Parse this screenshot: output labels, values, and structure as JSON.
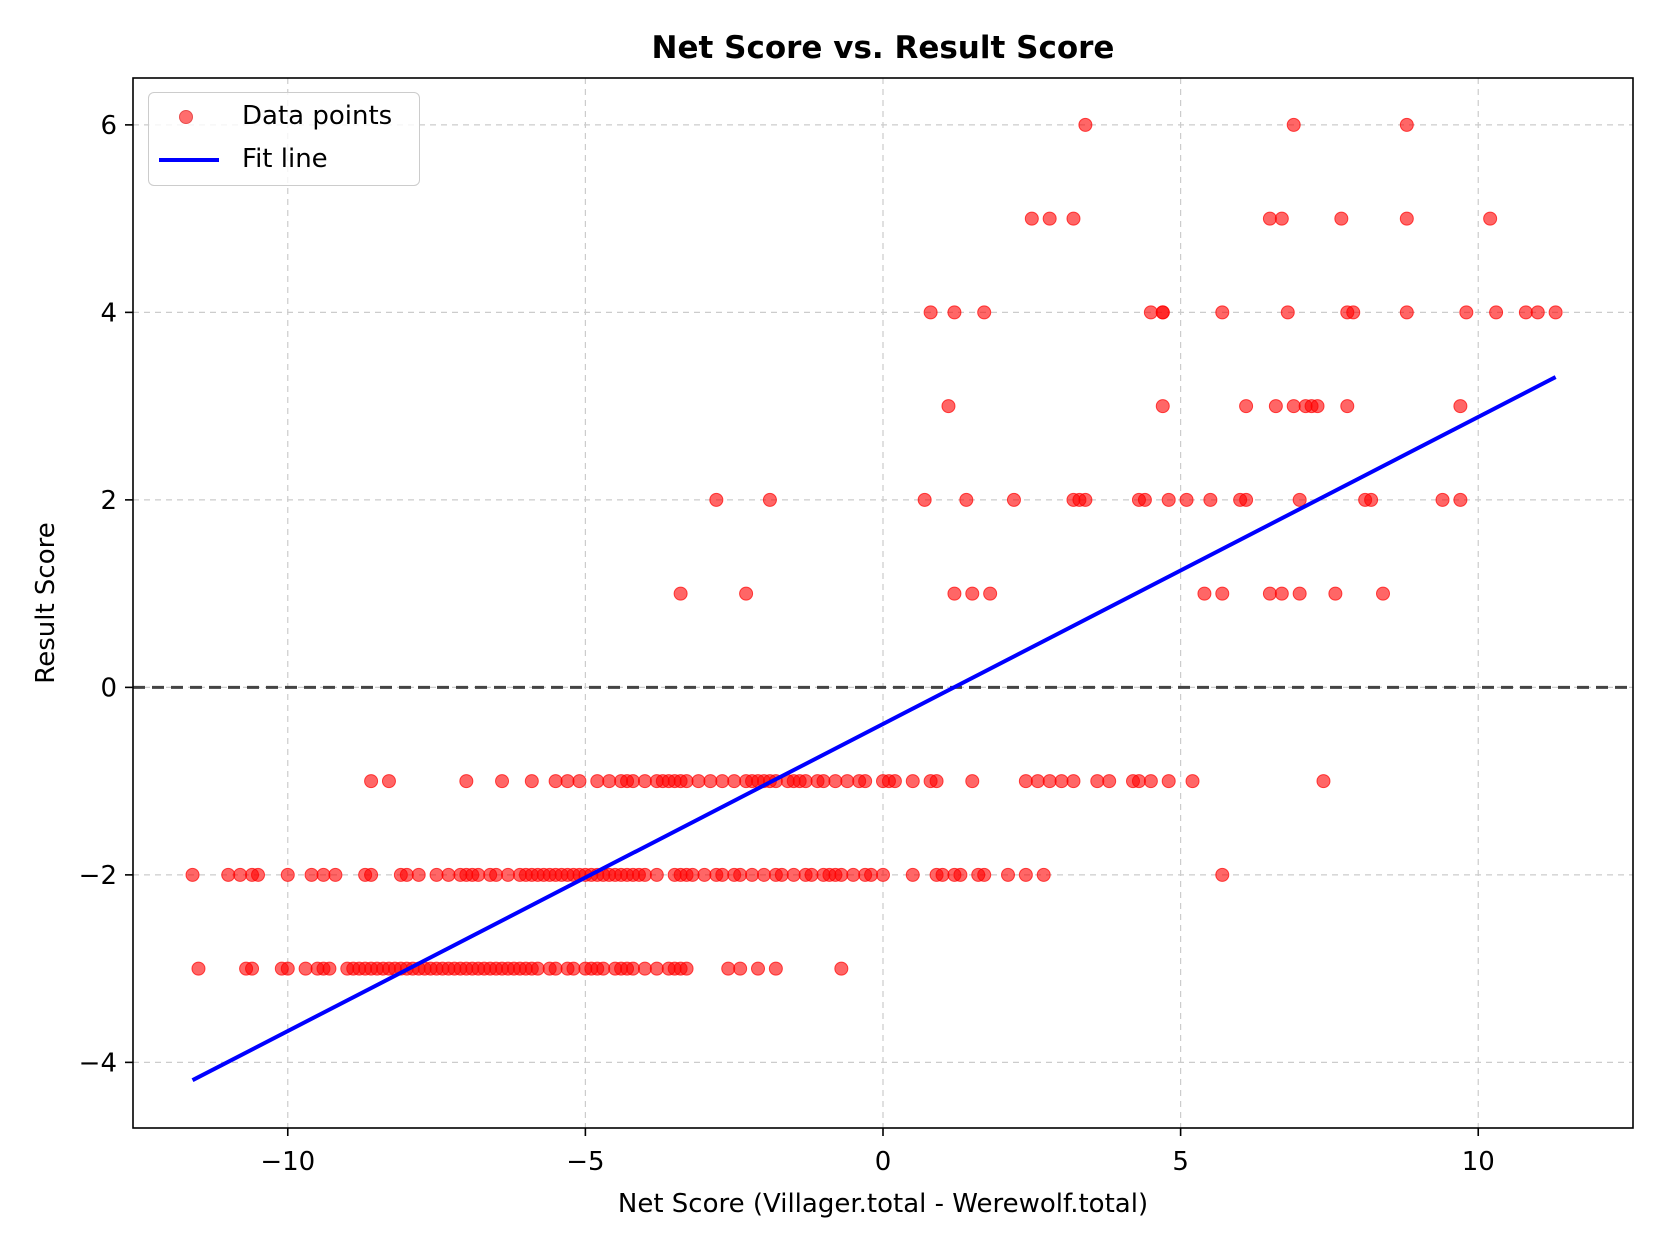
{
  "chart_data": {
    "type": "scatter",
    "title": "Net Score vs. Result Score",
    "xlabel": "Net Score (Villager.total - Werewolf.total)",
    "ylabel": "Result Score",
    "xlim": [
      -12.6,
      12.6
    ],
    "ylim": [
      -4.7,
      6.5
    ],
    "x_ticks": [
      -10,
      -5,
      0,
      5,
      10
    ],
    "x_tick_labels": [
      "−10",
      "−5",
      "0",
      "5",
      "10"
    ],
    "y_ticks": [
      -4,
      -2,
      0,
      2,
      4,
      6
    ],
    "y_tick_labels": [
      "−4",
      "−2",
      "0",
      "2",
      "4",
      "6"
    ],
    "grid": true,
    "legend_position": "top-left",
    "colors": {
      "points": "#ff0000",
      "fit_line": "#0000ff",
      "zero_line": "#444444",
      "grid": "#cccccc"
    },
    "reference_line": {
      "y": 0,
      "style": "dashed"
    },
    "series": [
      {
        "name": "Data points",
        "kind": "scatter",
        "points": [
          [
            3.4,
            6
          ],
          [
            6.9,
            6
          ],
          [
            8.8,
            6
          ],
          [
            2.5,
            5
          ],
          [
            2.8,
            5
          ],
          [
            3.2,
            5
          ],
          [
            6.5,
            5
          ],
          [
            6.7,
            5
          ],
          [
            7.7,
            5
          ],
          [
            8.8,
            5
          ],
          [
            10.2,
            5
          ],
          [
            0.8,
            4
          ],
          [
            1.2,
            4
          ],
          [
            1.7,
            4
          ],
          [
            4.5,
            4
          ],
          [
            4.7,
            4
          ],
          [
            4.7,
            4
          ],
          [
            5.7,
            4
          ],
          [
            6.8,
            4
          ],
          [
            7.8,
            4
          ],
          [
            7.9,
            4
          ],
          [
            8.8,
            4
          ],
          [
            9.8,
            4
          ],
          [
            10.3,
            4
          ],
          [
            10.8,
            4
          ],
          [
            11.0,
            4
          ],
          [
            11.3,
            4
          ],
          [
            1.1,
            3
          ],
          [
            4.7,
            3
          ],
          [
            6.1,
            3
          ],
          [
            6.6,
            3
          ],
          [
            6.9,
            3
          ],
          [
            7.1,
            3
          ],
          [
            7.2,
            3
          ],
          [
            7.3,
            3
          ],
          [
            7.8,
            3
          ],
          [
            9.7,
            3
          ],
          [
            -2.8,
            2
          ],
          [
            -1.9,
            2
          ],
          [
            0.7,
            2
          ],
          [
            1.4,
            2
          ],
          [
            2.2,
            2
          ],
          [
            3.2,
            2
          ],
          [
            3.3,
            2
          ],
          [
            3.4,
            2
          ],
          [
            4.3,
            2
          ],
          [
            4.4,
            2
          ],
          [
            4.8,
            2
          ],
          [
            5.1,
            2
          ],
          [
            5.5,
            2
          ],
          [
            6.0,
            2
          ],
          [
            6.1,
            2
          ],
          [
            7.0,
            2
          ],
          [
            8.1,
            2
          ],
          [
            8.2,
            2
          ],
          [
            9.4,
            2
          ],
          [
            9.7,
            2
          ],
          [
            -3.4,
            1
          ],
          [
            -2.3,
            1
          ],
          [
            1.2,
            1
          ],
          [
            1.5,
            1
          ],
          [
            1.8,
            1
          ],
          [
            5.4,
            1
          ],
          [
            5.7,
            1
          ],
          [
            6.5,
            1
          ],
          [
            6.7,
            1
          ],
          [
            7.0,
            1
          ],
          [
            7.6,
            1
          ],
          [
            8.4,
            1
          ],
          [
            -8.6,
            -1
          ],
          [
            -8.3,
            -1
          ],
          [
            -7.0,
            -1
          ],
          [
            -6.4,
            -1
          ],
          [
            -5.9,
            -1
          ],
          [
            -5.5,
            -1
          ],
          [
            -5.3,
            -1
          ],
          [
            -5.1,
            -1
          ],
          [
            -4.8,
            -1
          ],
          [
            -4.6,
            -1
          ],
          [
            -4.4,
            -1
          ],
          [
            -4.3,
            -1
          ],
          [
            -4.2,
            -1
          ],
          [
            -4.0,
            -1
          ],
          [
            -3.8,
            -1
          ],
          [
            -3.7,
            -1
          ],
          [
            -3.6,
            -1
          ],
          [
            -3.5,
            -1
          ],
          [
            -3.4,
            -1
          ],
          [
            -3.3,
            -1
          ],
          [
            -3.1,
            -1
          ],
          [
            -2.9,
            -1
          ],
          [
            -2.7,
            -1
          ],
          [
            -2.5,
            -1
          ],
          [
            -2.3,
            -1
          ],
          [
            -2.2,
            -1
          ],
          [
            -2.1,
            -1
          ],
          [
            -2.0,
            -1
          ],
          [
            -1.9,
            -1
          ],
          [
            -1.8,
            -1
          ],
          [
            -1.6,
            -1
          ],
          [
            -1.5,
            -1
          ],
          [
            -1.4,
            -1
          ],
          [
            -1.3,
            -1
          ],
          [
            -1.1,
            -1
          ],
          [
            -1.0,
            -1
          ],
          [
            -0.8,
            -1
          ],
          [
            -0.6,
            -1
          ],
          [
            -0.4,
            -1
          ],
          [
            -0.3,
            -1
          ],
          [
            0.0,
            -1
          ],
          [
            0.1,
            -1
          ],
          [
            0.2,
            -1
          ],
          [
            0.5,
            -1
          ],
          [
            0.8,
            -1
          ],
          [
            0.9,
            -1
          ],
          [
            1.5,
            -1
          ],
          [
            2.4,
            -1
          ],
          [
            2.6,
            -1
          ],
          [
            2.8,
            -1
          ],
          [
            3.0,
            -1
          ],
          [
            3.2,
            -1
          ],
          [
            3.6,
            -1
          ],
          [
            3.8,
            -1
          ],
          [
            4.2,
            -1
          ],
          [
            4.3,
            -1
          ],
          [
            4.5,
            -1
          ],
          [
            4.8,
            -1
          ],
          [
            5.2,
            -1
          ],
          [
            7.4,
            -1
          ],
          [
            -11.6,
            -2
          ],
          [
            -11.0,
            -2
          ],
          [
            -10.8,
            -2
          ],
          [
            -10.6,
            -2
          ],
          [
            -10.5,
            -2
          ],
          [
            -10.0,
            -2
          ],
          [
            -9.6,
            -2
          ],
          [
            -9.4,
            -2
          ],
          [
            -9.2,
            -2
          ],
          [
            -8.7,
            -2
          ],
          [
            -8.6,
            -2
          ],
          [
            -8.1,
            -2
          ],
          [
            -8.0,
            -2
          ],
          [
            -7.8,
            -2
          ],
          [
            -7.5,
            -2
          ],
          [
            -7.3,
            -2
          ],
          [
            -7.1,
            -2
          ],
          [
            -7.0,
            -2
          ],
          [
            -6.9,
            -2
          ],
          [
            -6.8,
            -2
          ],
          [
            -6.6,
            -2
          ],
          [
            -6.5,
            -2
          ],
          [
            -6.3,
            -2
          ],
          [
            -6.1,
            -2
          ],
          [
            -6.0,
            -2
          ],
          [
            -5.9,
            -2
          ],
          [
            -5.8,
            -2
          ],
          [
            -5.7,
            -2
          ],
          [
            -5.6,
            -2
          ],
          [
            -5.5,
            -2
          ],
          [
            -5.4,
            -2
          ],
          [
            -5.3,
            -2
          ],
          [
            -5.2,
            -2
          ],
          [
            -5.1,
            -2
          ],
          [
            -5.0,
            -2
          ],
          [
            -4.9,
            -2
          ],
          [
            -4.8,
            -2
          ],
          [
            -4.7,
            -2
          ],
          [
            -4.6,
            -2
          ],
          [
            -4.5,
            -2
          ],
          [
            -4.4,
            -2
          ],
          [
            -4.3,
            -2
          ],
          [
            -4.2,
            -2
          ],
          [
            -4.1,
            -2
          ],
          [
            -4.0,
            -2
          ],
          [
            -3.8,
            -2
          ],
          [
            -3.5,
            -2
          ],
          [
            -3.4,
            -2
          ],
          [
            -3.3,
            -2
          ],
          [
            -3.2,
            -2
          ],
          [
            -3.0,
            -2
          ],
          [
            -2.8,
            -2
          ],
          [
            -2.7,
            -2
          ],
          [
            -2.5,
            -2
          ],
          [
            -2.4,
            -2
          ],
          [
            -2.2,
            -2
          ],
          [
            -2.0,
            -2
          ],
          [
            -1.8,
            -2
          ],
          [
            -1.7,
            -2
          ],
          [
            -1.5,
            -2
          ],
          [
            -1.3,
            -2
          ],
          [
            -1.2,
            -2
          ],
          [
            -1.0,
            -2
          ],
          [
            -0.9,
            -2
          ],
          [
            -0.8,
            -2
          ],
          [
            -0.7,
            -2
          ],
          [
            -0.5,
            -2
          ],
          [
            -0.3,
            -2
          ],
          [
            -0.2,
            -2
          ],
          [
            0.0,
            -2
          ],
          [
            0.5,
            -2
          ],
          [
            0.9,
            -2
          ],
          [
            1.0,
            -2
          ],
          [
            1.2,
            -2
          ],
          [
            1.3,
            -2
          ],
          [
            1.6,
            -2
          ],
          [
            1.7,
            -2
          ],
          [
            2.1,
            -2
          ],
          [
            2.4,
            -2
          ],
          [
            2.7,
            -2
          ],
          [
            5.7,
            -2
          ],
          [
            -11.5,
            -3
          ],
          [
            -10.7,
            -3
          ],
          [
            -10.6,
            -3
          ],
          [
            -10.1,
            -3
          ],
          [
            -10.0,
            -3
          ],
          [
            -9.7,
            -3
          ],
          [
            -9.5,
            -3
          ],
          [
            -9.4,
            -3
          ],
          [
            -9.3,
            -3
          ],
          [
            -9.0,
            -3
          ],
          [
            -8.9,
            -3
          ],
          [
            -8.8,
            -3
          ],
          [
            -8.7,
            -3
          ],
          [
            -8.6,
            -3
          ],
          [
            -8.5,
            -3
          ],
          [
            -8.4,
            -3
          ],
          [
            -8.3,
            -3
          ],
          [
            -8.2,
            -3
          ],
          [
            -8.1,
            -3
          ],
          [
            -8.0,
            -3
          ],
          [
            -7.9,
            -3
          ],
          [
            -7.8,
            -3
          ],
          [
            -7.7,
            -3
          ],
          [
            -7.6,
            -3
          ],
          [
            -7.5,
            -3
          ],
          [
            -7.4,
            -3
          ],
          [
            -7.3,
            -3
          ],
          [
            -7.2,
            -3
          ],
          [
            -7.1,
            -3
          ],
          [
            -7.0,
            -3
          ],
          [
            -6.9,
            -3
          ],
          [
            -6.8,
            -3
          ],
          [
            -6.7,
            -3
          ],
          [
            -6.6,
            -3
          ],
          [
            -6.5,
            -3
          ],
          [
            -6.4,
            -3
          ],
          [
            -6.3,
            -3
          ],
          [
            -6.2,
            -3
          ],
          [
            -6.1,
            -3
          ],
          [
            -6.0,
            -3
          ],
          [
            -5.9,
            -3
          ],
          [
            -5.8,
            -3
          ],
          [
            -5.6,
            -3
          ],
          [
            -5.5,
            -3
          ],
          [
            -5.3,
            -3
          ],
          [
            -5.2,
            -3
          ],
          [
            -5.0,
            -3
          ],
          [
            -4.9,
            -3
          ],
          [
            -4.8,
            -3
          ],
          [
            -4.7,
            -3
          ],
          [
            -4.5,
            -3
          ],
          [
            -4.4,
            -3
          ],
          [
            -4.3,
            -3
          ],
          [
            -4.2,
            -3
          ],
          [
            -4.0,
            -3
          ],
          [
            -3.8,
            -3
          ],
          [
            -3.6,
            -3
          ],
          [
            -3.5,
            -3
          ],
          [
            -3.4,
            -3
          ],
          [
            -3.3,
            -3
          ],
          [
            -2.6,
            -3
          ],
          [
            -2.4,
            -3
          ],
          [
            -2.1,
            -3
          ],
          [
            -1.8,
            -3
          ],
          [
            -0.7,
            -3
          ]
        ]
      },
      {
        "name": "Fit line",
        "kind": "line",
        "x": [
          -11.6,
          11.3
        ],
        "y": [
          -4.19,
          3.31
        ]
      }
    ]
  }
}
